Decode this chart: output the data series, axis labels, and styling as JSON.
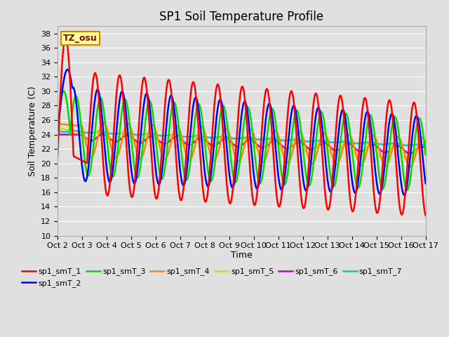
{
  "title": "SP1 Soil Temperature Profile",
  "xlabel": "Time",
  "ylabel": "Soil Temperature (C)",
  "bg_color": "#e0e0e0",
  "annotation_text": "TZ_osu",
  "annotation_bg": "#ffff99",
  "annotation_border": "#cc8800",
  "annotation_text_color": "#8B0000",
  "ylim": [
    10,
    39
  ],
  "yticks": [
    10,
    12,
    14,
    16,
    18,
    20,
    22,
    24,
    26,
    28,
    30,
    32,
    34,
    36,
    38
  ],
  "xtick_labels": [
    "Oct 2",
    "Oct 3",
    "Oct 4",
    "Oct 5",
    "Oct 6",
    "Oct 7",
    "Oct 8",
    "Oct 9",
    "Oct 10",
    "Oct 11",
    "Oct 12",
    "Oct 13",
    "Oct 14",
    "Oct 15",
    "Oct 16",
    "Oct 17"
  ],
  "series_colors": {
    "sp1_smT_1": "#ff0000",
    "sp1_smT_2": "#0000ff",
    "sp1_smT_3": "#00dd00",
    "sp1_smT_4": "#ff8800",
    "sp1_smT_5": "#dddd00",
    "sp1_smT_6": "#cc00cc",
    "sp1_smT_7": "#00cccc"
  },
  "n_days": 15,
  "ppd": 96,
  "grid_color": "#ffffff",
  "title_fontsize": 12,
  "label_fontsize": 9,
  "tick_fontsize": 8
}
